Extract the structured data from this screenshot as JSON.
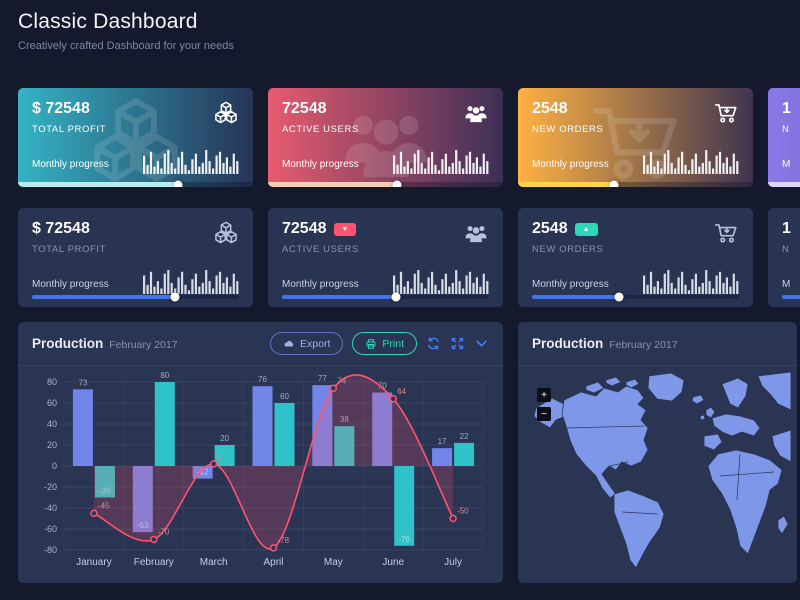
{
  "page": {
    "title": "Classic Dashboard",
    "subtitle": "Creatively crafted Dashboard for your needs"
  },
  "colors": {
    "page_bg": "#141a2c",
    "card_bg": "#293352",
    "panel_bg": "#2a3453",
    "accent_blue": "#4680ff",
    "flat_progress_fill": "#4573e8"
  },
  "cards_gradient": [
    {
      "value": "$ 72548",
      "label": "TOTAL PROFIT",
      "progress_label": "Monthly progress",
      "icon": "cubes-icon",
      "gradient_from": "#35b3c5",
      "gradient_to": "#263457",
      "progress_pct": 68,
      "progress_fill": "#b9edf2"
    },
    {
      "value": "72548",
      "label": "ACTIVE USERS",
      "progress_label": "Monthly progress",
      "icon": "users-icon",
      "gradient_from": "#e75b6f",
      "gradient_to": "#3d2f56",
      "progress_pct": 55,
      "progress_fill": "#f6cdb5"
    },
    {
      "value": "2548",
      "label": "NEW ORDERS",
      "progress_label": "Monthly progress",
      "icon": "cart-icon",
      "gradient_from": "#ffb243",
      "gradient_to": "#3f3450",
      "progress_pct": 41,
      "progress_fill": "#ffd54f"
    },
    {
      "value": "1",
      "label": "N",
      "progress_label": "M",
      "icon": "chart-bars-icon",
      "gradient_from": "#8a7ae9",
      "gradient_to": "#4a3f8f",
      "progress_pct": 60,
      "progress_fill": "#dcd6ff"
    }
  ],
  "cards_flat": [
    {
      "value": "$ 72548",
      "label": "TOTAL PROFIT",
      "progress_label": "Monthly progress",
      "icon": "cubes-icon",
      "badge": null,
      "progress_pct": 69
    },
    {
      "value": "72548",
      "label": "ACTIVE USERS",
      "progress_label": "Monthly progress",
      "icon": "users-icon",
      "badge": {
        "symbol": "▼",
        "color": "#ff5370"
      },
      "progress_pct": 55
    },
    {
      "value": "2548",
      "label": "NEW ORDERS",
      "progress_label": "Monthly progress",
      "icon": "cart-icon",
      "badge": {
        "symbol": "▲",
        "color": "#2ed8b6"
      },
      "progress_pct": 42
    },
    {
      "value": "1",
      "label": "N",
      "progress_label": "M",
      "icon": "chart-bars-icon",
      "badge": null,
      "progress_pct": 60
    }
  ],
  "sparkline": [
    10,
    5,
    12,
    4,
    7,
    3,
    11,
    13,
    6,
    3,
    9,
    12,
    5,
    2,
    8,
    11,
    4,
    6,
    13,
    7,
    3,
    10,
    12,
    6,
    9,
    4,
    11,
    7
  ],
  "chart_panel": {
    "title": "Production",
    "subtitle": "February 2017",
    "export_label": "Export",
    "print_label": "Print"
  },
  "chart_data": {
    "type": "bar+line",
    "title": "Production February 2017",
    "categories": [
      "January",
      "February",
      "March",
      "April",
      "May",
      "June",
      "July"
    ],
    "series": [
      {
        "name": "bars-blue",
        "type": "bar",
        "color": "#7186e8",
        "values": [
          73,
          -63,
          -12,
          76,
          77,
          70,
          17
        ]
      },
      {
        "name": "bars-teal",
        "type": "bar",
        "color": "#2fc3c9",
        "values": [
          -30,
          80,
          20,
          60,
          38,
          -76,
          22
        ]
      },
      {
        "name": "trend-line",
        "type": "line",
        "color": "#ff5370",
        "area_color": "rgba(255,83,112,0.20)",
        "values": [
          -45,
          -70,
          2,
          -78,
          74,
          64,
          -50
        ]
      }
    ],
    "ylim": [
      -80,
      80
    ],
    "ytick_step": 20,
    "grid": true,
    "legend": "none",
    "show_value_labels": true
  },
  "map_panel": {
    "title": "Production",
    "subtitle": "February 2017",
    "zoom_in_label": "+",
    "zoom_out_label": "−",
    "land_color": "#7e97e9"
  }
}
